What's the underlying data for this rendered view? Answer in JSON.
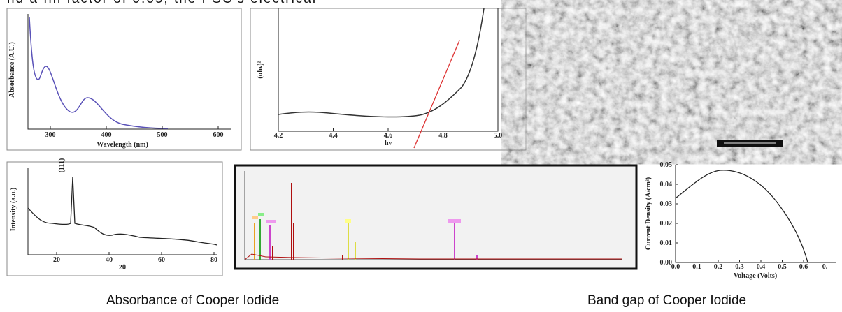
{
  "header_text": "nd a fill factor of 0.65, the PSC's electrical",
  "panels": [
    {
      "ylabel": "Absorbance (A.U.)",
      "xlabel": "Wavelength (nm)",
      "xticks": [
        "300",
        "400",
        "500",
        "600"
      ]
    },
    {
      "ylabel": "(αhν)²",
      "xlabel": "hν",
      "xticks": [
        "4.2",
        "4.4",
        "4.6",
        "4.8",
        "5.0"
      ]
    },
    {},
    {
      "ylabel": "Intensity (a.u.)",
      "xlabel": "2θ",
      "peak_label": "(111)",
      "xticks": [
        "20",
        "40",
        "60",
        "80"
      ]
    },
    {},
    {
      "ylabel": "Current Density (A/cm²)",
      "xlabel": "Voltage (Volts)",
      "xticks": [
        "0.0",
        "0.1",
        "0.2",
        "0.3",
        "0.4",
        "0.5",
        "0.6",
        "0."
      ],
      "yticks": [
        "0.00",
        "0.01",
        "0.02",
        "0.03",
        "0.04",
        "0.05"
      ]
    }
  ],
  "captions": [
    "Absorbance of Cooper Iodide",
    "Band gap of Cooper Iodide"
  ]
}
